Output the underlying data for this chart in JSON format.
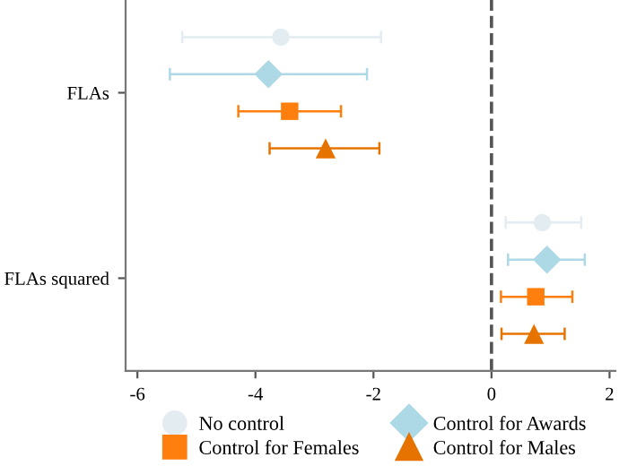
{
  "chart_data": {
    "type": "scatter",
    "orientation": "horizontal",
    "categories": [
      "FLAs",
      "FLAs squared"
    ],
    "series": [
      {
        "name": "No control",
        "color": "#e3ecf0",
        "marker": "circle",
        "values": [
          -3.57,
          0.86
        ],
        "errors": [
          [
            -5.24,
            -1.87
          ],
          [
            0.24,
            1.52
          ]
        ]
      },
      {
        "name": "Control for Awards",
        "color": "#add8e6",
        "marker": "diamond",
        "values": [
          -3.78,
          0.94
        ],
        "errors": [
          [
            -5.45,
            -2.11
          ],
          [
            0.28,
            1.58
          ]
        ]
      },
      {
        "name": "Control for Females",
        "color": "#ff7f0e",
        "marker": "square",
        "values": [
          -3.42,
          0.75
        ],
        "errors": [
          [
            -4.29,
            -2.55
          ],
          [
            0.16,
            1.37
          ]
        ]
      },
      {
        "name": "Control for Males",
        "color": "#e67300",
        "marker": "triangle",
        "values": [
          -2.81,
          0.72
        ],
        "errors": [
          [
            -3.76,
            -1.9
          ],
          [
            0.17,
            1.24
          ]
        ]
      }
    ],
    "xlim": [
      -6.2,
      2.1
    ],
    "xticks": [
      -6,
      -4,
      -2,
      0,
      2
    ],
    "ref_lines": [
      {
        "axis": "x",
        "value": 0,
        "color": "#555555",
        "line_style": "dashed"
      }
    ],
    "legend": "bottom",
    "grid": false
  }
}
